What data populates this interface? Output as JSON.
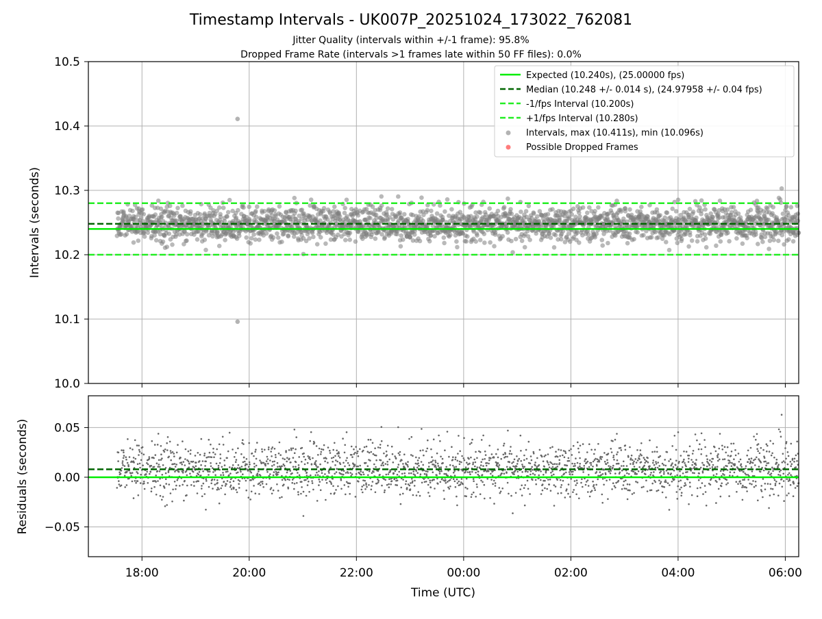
{
  "figure": {
    "title": "Timestamp Intervals - UK007P_20251024_173022_762081",
    "subtitle1": "Jitter Quality (intervals within +/-1 frame): 95.8%",
    "subtitle2": "Dropped Frame Rate (intervals >1 frames late within 50 FF files): 0.0%"
  },
  "colors": {
    "expected": "#00ee00",
    "median": "#006400",
    "bounds": "#22ee22",
    "intervals": "#808080",
    "dropped": "#ff4444",
    "grid": "#b0b0b0"
  },
  "chart_data": [
    {
      "type": "scatter",
      "ylabel": "Intervals (seconds)",
      "xlim": [
        "17:00",
        "06:15"
      ],
      "ylim": [
        10.0,
        10.5
      ],
      "yticks": [
        "10.0",
        "10.1",
        "10.2",
        "10.3",
        "10.4",
        "10.5"
      ],
      "grid": true,
      "legend_position": "top-right",
      "lines": [
        {
          "name": "Expected (10.240s), (25.00000 fps)",
          "y": 10.24,
          "style": "solid"
        },
        {
          "name": "Median (10.248 +/- 0.014 s), (24.97958 +/- 0.04 fps)",
          "y": 10.248,
          "style": "dashed"
        },
        {
          "name": "-1/fps Interval (10.200s)",
          "y": 10.2,
          "style": "dashed"
        },
        {
          "name": "+1/fps Interval (10.280s)",
          "y": 10.28,
          "style": "dashed"
        }
      ],
      "series": [
        {
          "name": "Intervals, max (10.411s), min (10.096s)",
          "marker": "circle",
          "time_range": [
            "17:32",
            "06:15"
          ],
          "center": 10.248,
          "spread": 0.014,
          "max": 10.411,
          "min": 10.096,
          "max_time": "19:47",
          "min_time": "19:47"
        },
        {
          "name": "Possible Dropped Frames",
          "marker": "circle",
          "values": []
        }
      ]
    },
    {
      "type": "scatter",
      "xlabel": "Time (UTC)",
      "ylabel": "Residuals (seconds)",
      "xlim": [
        "17:00",
        "06:15"
      ],
      "ylim": [
        -0.08,
        0.082
      ],
      "yticks": [
        "−0.05",
        "0.00",
        "0.05"
      ],
      "ytick_values": [
        -0.05,
        0.0,
        0.05
      ],
      "xticks": [
        "18:00",
        "20:00",
        "22:00",
        "00:00",
        "02:00",
        "04:00",
        "06:00"
      ],
      "grid": true,
      "lines": [
        {
          "y": 0.0,
          "style": "solid"
        },
        {
          "y": 0.008,
          "style": "dashed"
        }
      ],
      "series": [
        {
          "marker": "dot",
          "time_range": [
            "17:32",
            "06:15"
          ],
          "center": 0.008,
          "spread": 0.014
        }
      ]
    }
  ]
}
